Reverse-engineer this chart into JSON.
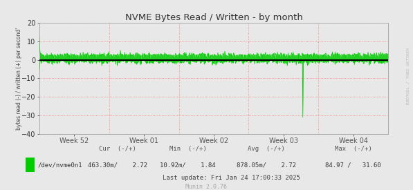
{
  "title": "NVME Bytes Read / Written - by month",
  "ylabel": "bytes read (-) / written (+) per second'",
  "bg_color": "#e8e8e8",
  "plot_bg_color": "#e8e8e8",
  "grid_color": "#ff7777",
  "line_color": "#00cc00",
  "zero_line_color": "#000000",
  "ylim": [
    -40,
    20
  ],
  "yticks": [
    -40,
    -30,
    -20,
    -10,
    0,
    10,
    20
  ],
  "x_week_labels": [
    "Week 52",
    "Week 01",
    "Week 02",
    "Week 03",
    "Week 04"
  ],
  "watermark": "RRDTOOL / TOBI OETIKER",
  "munin_version": "Munin 2.0.76",
  "legend_label": "/dev/nvme0n1",
  "legend_color": "#00cc00",
  "stats_header": "Cur  (-/+)          Min  (-/+)          Avg  (-/+)          Max  (-/+)",
  "stats_cur_neg": "463.30m/",
  "stats_cur_pos": "2.72",
  "stats_min_neg": "10.92m/",
  "stats_min_pos": "1.84",
  "stats_avg_neg": "878.05m/",
  "stats_avg_pos": "2.72",
  "stats_max_neg": "84.97 /",
  "stats_max_pos": "31.60",
  "last_update": "Last update: Fri Jan 24 17:00:33 2025",
  "n_points": 900
}
